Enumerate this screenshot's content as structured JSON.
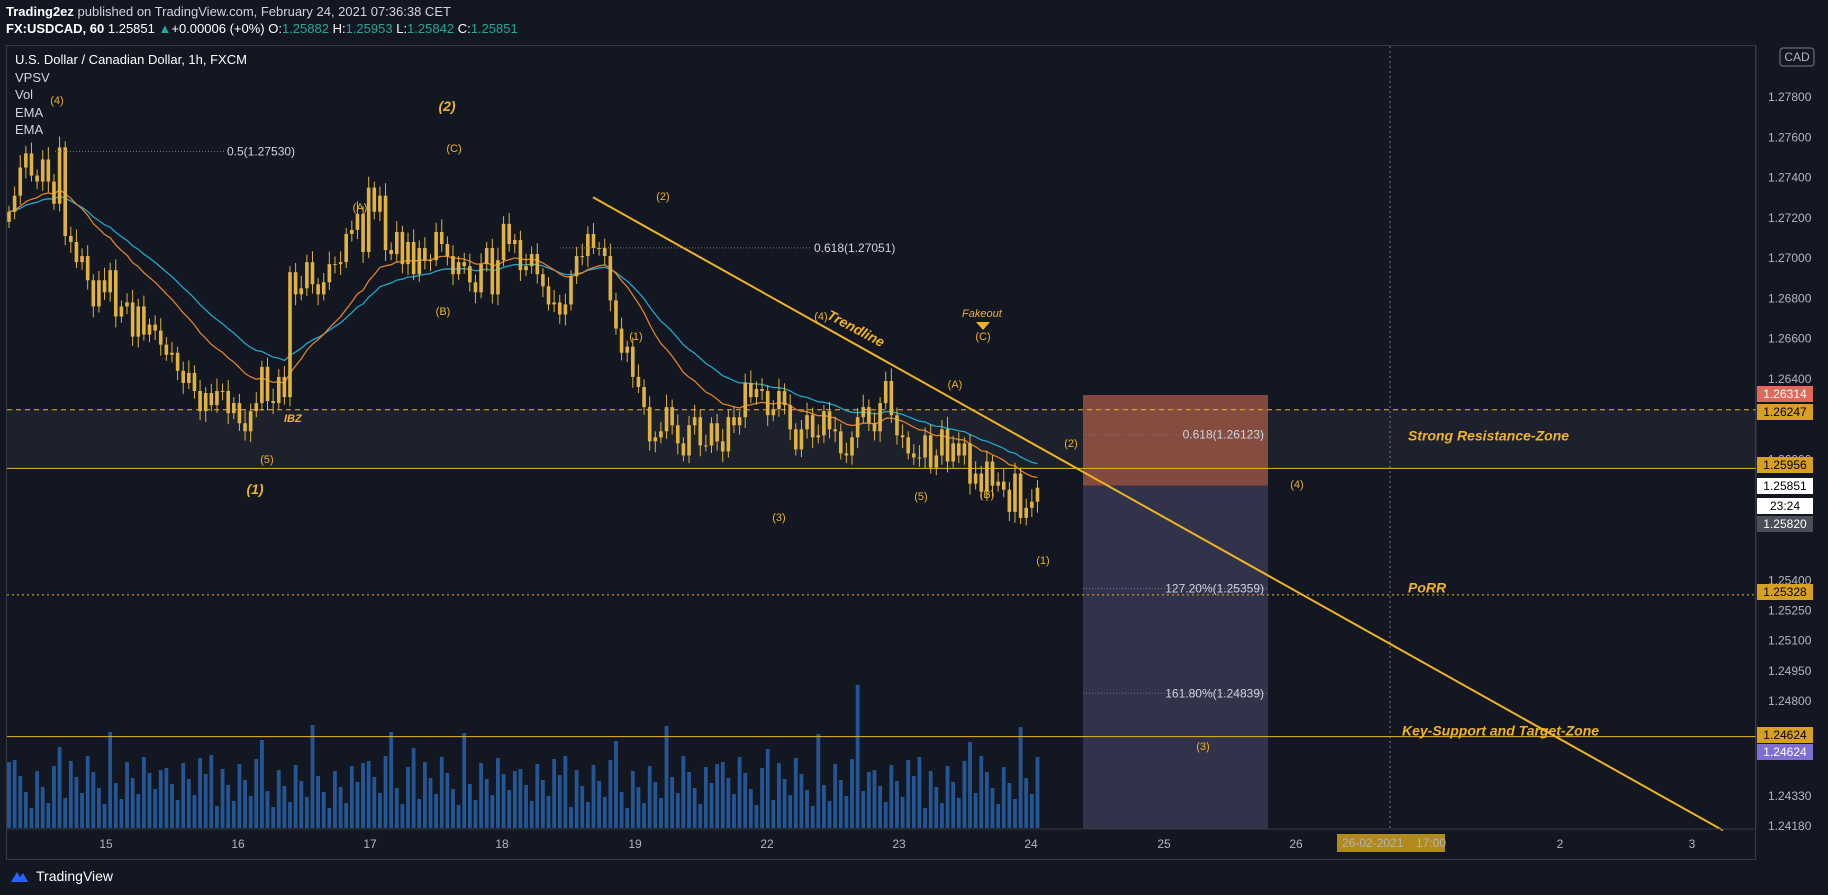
{
  "header": {
    "publisher": "Trading2ez",
    "published_text": "published on TradingView.com, February 24, 2021 07:36:38 CET",
    "symbol": "FX:USDCAD, 60",
    "last": "1.25851",
    "change_arrow": "▲",
    "change": "+0.00006 (+0%)",
    "o_label": "O:",
    "o": "1.25882",
    "h_label": "H:",
    "h": "1.25953",
    "l_label": "L:",
    "l": "1.25842",
    "c_label": "C:",
    "c": "1.25851"
  },
  "legend": {
    "title": "U.S. Dollar / Canadian Dollar, 1h, FXCM",
    "indicators": [
      "VPSV",
      "Vol",
      "EMA",
      "EMA"
    ]
  },
  "footer": {
    "brand": "TradingView"
  },
  "colors": {
    "background": "#131722",
    "gold": "#f0b323",
    "candle": "#e0b341",
    "ema_fast": "#e0802a",
    "ema_slow": "#22a7c9",
    "volume": "#2962a8",
    "stop_zone": "#b2604a",
    "target_zone": "#4a4b6b"
  },
  "chart_data": {
    "type": "candlestick",
    "title": "U.S. Dollar / Canadian Dollar, 1h, FXCM",
    "currency": "CAD",
    "y_axis": {
      "ticks": [
        "1.27800",
        "1.27600",
        "1.27400",
        "1.27200",
        "1.27000",
        "1.26800",
        "1.26600",
        "1.26400",
        "1.26000",
        "1.25400",
        "1.25250",
        "1.25100",
        "1.24950",
        "1.24800",
        "1.24330",
        "1.24180"
      ],
      "range": [
        1.2418,
        1.2795
      ]
    },
    "x_axis": {
      "ticks": [
        "15",
        "16",
        "17",
        "18",
        "19",
        "22",
        "23",
        "24",
        "25",
        "26",
        "2",
        "3"
      ],
      "crosshair_label": "26-02-2021",
      "crosshair_time": "17:00"
    },
    "price_labels": [
      {
        "value": "1.26314",
        "kind": "stop"
      },
      {
        "value": "1.26247",
        "kind": "gold"
      },
      {
        "value": "1.25956",
        "kind": "gold"
      },
      {
        "value": "1.25851",
        "kind": "last"
      },
      {
        "value": "23:24",
        "kind": "countdown"
      },
      {
        "value": "1.25820",
        "kind": "grey"
      },
      {
        "value": "1.25328",
        "kind": "gold"
      },
      {
        "value": "1.24624",
        "kind": "gold"
      },
      {
        "value": "1.24624",
        "kind": "purple"
      }
    ],
    "fib_levels": [
      {
        "text": "0.5(1.27530)",
        "price": 1.2753
      },
      {
        "text": "0.618(1.27051)",
        "price": 1.27051
      },
      {
        "text": "0.618(1.26123)",
        "price": 1.26123
      },
      {
        "text": "127.20%(1.25359)",
        "price": 1.25359
      },
      {
        "text": "161.80%(1.24839)",
        "price": 1.24839
      }
    ],
    "zones": {
      "strong_resistance": "Strong Resistance-Zone",
      "porr": "PoRR",
      "key_support": "Key-Support and Target-Zone"
    },
    "annotations": {
      "trendline": "Trendline",
      "fakeout": "Fakeout",
      "ibz": "IBZ",
      "waves_small": [
        "(4)",
        "(C)",
        "(A)",
        "(B)",
        "(5)",
        "(2)",
        "(1)",
        "(3)",
        "(4)",
        "(C)",
        "(A)",
        "(5)",
        "(B)",
        "(2)",
        "(1)",
        "(4)",
        "(3)"
      ],
      "waves_big": [
        "(2)",
        "(1)"
      ]
    },
    "candles_close": [
      1.2723,
      1.2731,
      1.2745,
      1.2752,
      1.2741,
      1.2738,
      1.2749,
      1.2738,
      1.2727,
      1.2755,
      1.2711,
      1.2708,
      1.2698,
      1.2701,
      1.2689,
      1.2676,
      1.2689,
      1.2683,
      1.2694,
      1.2671,
      1.2676,
      1.2678,
      1.2661,
      1.2676,
      1.2662,
      1.2667,
      1.2664,
      1.2657,
      1.2652,
      1.2653,
      1.2644,
      1.2638,
      1.2643,
      1.2634,
      1.2624,
      1.2633,
      1.2627,
      1.2634,
      1.2634,
      1.2623,
      1.2628,
      1.2618,
      1.2614,
      1.2624,
      1.2628,
      1.2646,
      1.2629,
      1.2628,
      1.2641,
      1.2631,
      1.2693,
      1.2682,
      1.2685,
      1.2698,
      1.2687,
      1.2682,
      1.2688,
      1.2697,
      1.2697,
      1.2698,
      1.2712,
      1.2714,
      1.2722,
      1.2703,
      1.2735,
      1.2723,
      1.2731,
      1.2704,
      1.2702,
      1.2713,
      1.2697,
      1.2708,
      1.2692,
      1.2705,
      1.2699,
      1.2699,
      1.2713,
      1.2707,
      1.2701,
      1.2692,
      1.2698,
      1.2696,
      1.2688,
      1.2683,
      1.2697,
      1.2705,
      1.2682,
      1.2699,
      1.2717,
      1.2707,
      1.2709,
      1.2694,
      1.2696,
      1.2702,
      1.2692,
      1.2686,
      1.2677,
      1.2678,
      1.2672,
      1.2677,
      1.2691,
      1.2701,
      1.2701,
      1.2712,
      1.2705,
      1.2705,
      1.2701,
      1.2679,
      1.2665,
      1.2653,
      1.2656,
      1.2641,
      1.2636,
      1.2626,
      1.2609,
      1.2611,
      1.2614,
      1.2626,
      1.2617,
      1.2608,
      1.2602,
      1.2617,
      1.2621,
      1.2607,
      1.2607,
      1.2618,
      1.2609,
      1.2604,
      1.2621,
      1.2617,
      1.2621,
      1.2638,
      1.2631,
      1.2635,
      1.2634,
      1.2622,
      1.2625,
      1.2634,
      1.2627,
      1.2615,
      1.2605,
      1.2615,
      1.2622,
      1.2611,
      1.2612,
      1.2624,
      1.2615,
      1.2614,
      1.2603,
      1.2602,
      1.2611,
      1.2621,
      1.2626,
      1.2618,
      1.2614,
      1.2628,
      1.2639,
      1.2622,
      1.2612,
      1.2611,
      1.2603,
      1.2601,
      1.2601,
      1.2612,
      1.2596,
      1.2602,
      1.2615,
      1.2599,
      1.2608,
      1.2602,
      1.2608,
      1.2588,
      1.2593,
      1.2584,
      1.2599,
      1.2587,
      1.2589,
      1.2585,
      1.2574,
      1.2593,
      1.2571,
      1.2576,
      1.2579,
      1.2586
    ]
  }
}
